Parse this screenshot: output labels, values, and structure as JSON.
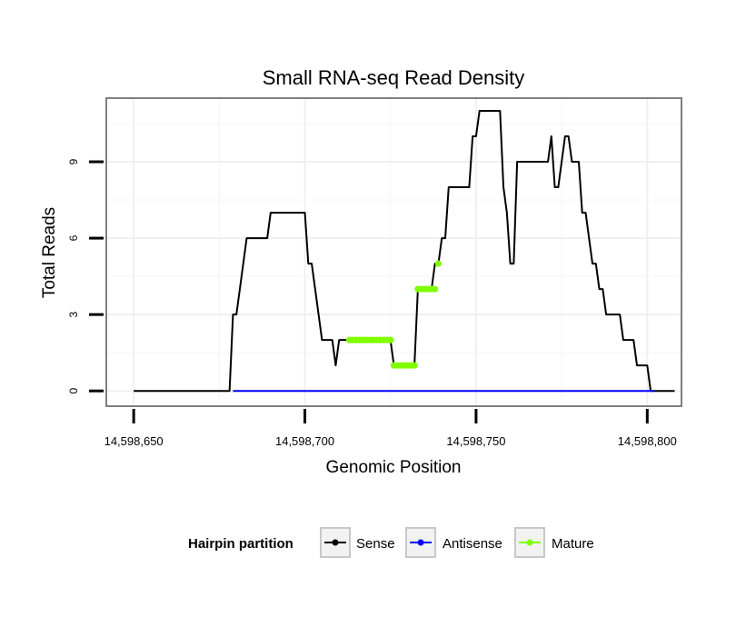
{
  "chart_data": {
    "type": "line",
    "title": "Small RNA-seq Read Density",
    "xlabel": "Genomic Position",
    "ylabel": "Total Reads",
    "xlim": [
      14598642,
      14598810
    ],
    "ylim": [
      -0.6,
      11.5
    ],
    "x_ticks": [
      14598650,
      14598700,
      14598750,
      14598800
    ],
    "x_tick_labels": [
      "14,598,650",
      "14,598,700",
      "14,598,750",
      "14,598,800"
    ],
    "y_ticks": [
      0,
      3,
      6,
      9
    ],
    "y_tick_labels": [
      "0",
      "3",
      "6",
      "9"
    ],
    "grid": true,
    "legend": {
      "title": "Hairpin partition",
      "position": "bottom",
      "entries": [
        "Sense",
        "Antisense",
        "Mature"
      ]
    },
    "series": [
      {
        "name": "Sense",
        "color": "#000000",
        "x": [
          14598650,
          14598678,
          14598679,
          14598680,
          14598681,
          14598682,
          14598683,
          14598684,
          14598689,
          14598690,
          14598691,
          14598692,
          14598693,
          14598700,
          14598701,
          14598702,
          14598703,
          14598704,
          14598705,
          14598706,
          14598707,
          14598708,
          14598709,
          14598710,
          14598711,
          14598712,
          14598713,
          14598714,
          14598725,
          14598726,
          14598732,
          14598733,
          14598734,
          14598737,
          14598738,
          14598739,
          14598740,
          14598741,
          14598742,
          14598743,
          14598744,
          14598745,
          14598746,
          14598747,
          14598748,
          14598749,
          14598750,
          14598751,
          14598752,
          14598753,
          14598754,
          14598755,
          14598756,
          14598757,
          14598758,
          14598759,
          14598760,
          14598761,
          14598762,
          14598763,
          14598764,
          14598765,
          14598766,
          14598767,
          14598768,
          14598769,
          14598770,
          14598771,
          14598772,
          14598773,
          14598774,
          14598775,
          14598776,
          14598777,
          14598778,
          14598779,
          14598780,
          14598781,
          14598782,
          14598783,
          14598784,
          14598785,
          14598786,
          14598787,
          14598788,
          14598789,
          14598790,
          14598791,
          14598792,
          14598793,
          14598794,
          14598795,
          14598796,
          14598797,
          14598798,
          14598799,
          14598800,
          14598801,
          14598802,
          14598803,
          14598808
        ],
        "values": [
          0,
          0,
          3,
          3,
          4,
          5,
          6,
          6,
          6,
          7,
          7,
          7,
          7,
          7,
          5,
          5,
          4,
          3,
          2,
          2,
          2,
          2,
          1,
          2,
          2,
          2,
          2,
          2,
          2,
          1,
          1,
          4,
          4,
          4,
          5,
          5,
          6,
          6,
          8,
          8,
          8,
          8,
          8,
          8,
          8,
          10,
          10,
          11,
          11,
          11,
          11,
          11,
          11,
          11,
          8,
          7,
          5,
          5,
          9,
          9,
          9,
          9,
          9,
          9,
          9,
          9,
          9,
          9,
          10,
          8,
          8,
          9,
          10,
          10,
          9,
          9,
          9,
          7,
          7,
          6,
          5,
          5,
          4,
          4,
          3,
          3,
          3,
          3,
          3,
          2,
          2,
          2,
          2,
          1,
          1,
          1,
          1,
          0,
          0,
          0,
          0
        ]
      },
      {
        "name": "Antisense",
        "color": "#0000ff",
        "x": [
          14598679,
          14598802
        ],
        "values": [
          0,
          0
        ]
      },
      {
        "name": "Mature",
        "color": "#7fff00",
        "segments": [
          {
            "x": [
              14598713,
              14598725
            ],
            "values": [
              2,
              2
            ]
          },
          {
            "x": [
              14598726,
              14598732
            ],
            "values": [
              1,
              1
            ]
          },
          {
            "x": [
              14598733,
              14598738
            ],
            "values": [
              4,
              4
            ]
          },
          {
            "x": [
              14598739,
              14598739
            ],
            "values": [
              5,
              5
            ]
          }
        ]
      }
    ]
  }
}
